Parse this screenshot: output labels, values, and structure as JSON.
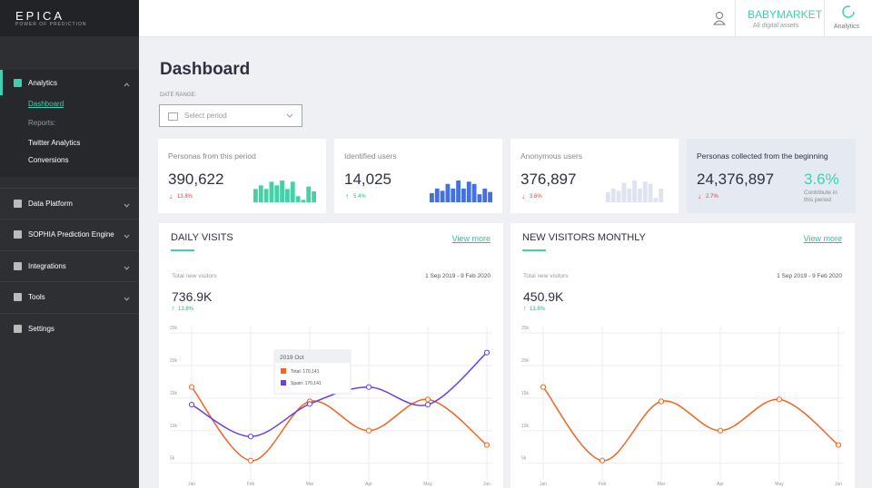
{
  "brand": {
    "logo": "EPICA",
    "tagline": "POWER OF PREDICTION"
  },
  "topbar": {
    "account": "BABYMARKET",
    "assets": "All digital assets",
    "app": "Analytics"
  },
  "sidebar": {
    "sections": [
      {
        "label": "Analytics",
        "children": [
          "Dashboard",
          "Reports:",
          "Twitter Analytics",
          "Conversions"
        ]
      },
      {
        "label": "Data Platform"
      },
      {
        "label": "SOPHIA Prediction Engine"
      },
      {
        "label": "Integrations"
      },
      {
        "label": "Tools"
      },
      {
        "label": "Settings"
      }
    ]
  },
  "page": {
    "title": "Dashboard",
    "date_range_label": "DATE RANGE:",
    "date_placeholder": "Select period"
  },
  "kpis": [
    {
      "title": "Personas from this period",
      "value": "390,622",
      "change": "13.8%",
      "trend": "down",
      "color": "#43d1a5",
      "bars": [
        11,
        14,
        11,
        17,
        14,
        18,
        11,
        17,
        5,
        2,
        13,
        9
      ]
    },
    {
      "title": "Identified users",
      "value": "14,025",
      "change": "5.4%",
      "trend": "up",
      "color": "#4570e0",
      "bars": [
        8,
        12,
        10,
        16,
        12,
        19,
        12,
        18,
        16,
        7,
        12,
        9
      ]
    },
    {
      "title": "Anonymous users",
      "value": "376,897",
      "change": "3.6%",
      "trend": "down",
      "color": "#dfe3ef",
      "bars": [
        9,
        12,
        10,
        17,
        12,
        19,
        12,
        18,
        16,
        4,
        12
      ]
    },
    {
      "title": "Personas collected from the beginning",
      "value": "24,376,897",
      "change": "2.7%",
      "trend": "down",
      "percent": "3.6%",
      "note": "Contribute in this period"
    }
  ],
  "charts": [
    {
      "title": "DAILY VISITS",
      "link": "View more",
      "subtitle": "Total new visitors",
      "date_range": "1 Sep 2019 - 9 Feb 2020",
      "total": "736.9K",
      "change": "13.8%",
      "tooltip": {
        "title": "2019 Oct",
        "items": [
          "Total: 170,141",
          "Spain: 170,141"
        ]
      },
      "chart_data": {
        "type": "line",
        "categories": [
          "Jan",
          "Feb",
          "Mar",
          "Apr",
          "May",
          "Jun"
        ],
        "series": [
          {
            "color": "#f26522",
            "values": [
              16700,
              5400,
              14500,
              10000,
              14800,
              7800
            ]
          },
          {
            "color": "#6a3de8",
            "values": [
              14000,
              9100,
              14100,
              16700,
              14000,
              22000
            ]
          }
        ],
        "ylim": [
          3000,
          26000
        ],
        "yticks": [
          {
            "value": 5000,
            "label": "5k"
          },
          {
            "value": 10000,
            "label": "10k"
          },
          {
            "value": 15000,
            "label": "15k"
          },
          {
            "value": 20000,
            "label": "20k"
          },
          {
            "value": 25000,
            "label": "25k"
          }
        ],
        "grid": true
      }
    },
    {
      "title": "NEW VISITORS MONTHLY",
      "link": "View more",
      "subtitle": "Total new visitors",
      "date_range": "1 Sep 2019 - 9 Feb 2020",
      "total": "450.9K",
      "change": "13.8%",
      "chart_data": {
        "type": "line",
        "categories": [
          "Jan",
          "Feb",
          "Mar",
          "Apr",
          "May",
          "Jun"
        ],
        "series": [
          {
            "color": "#f26522",
            "values": [
              16700,
              5400,
              14500,
              10000,
              14800,
              7800
            ]
          }
        ],
        "ylim": [
          3000,
          26000
        ],
        "yticks": [
          {
            "value": 5000,
            "label": "5k"
          },
          {
            "value": 10000,
            "label": "10k"
          },
          {
            "value": 15000,
            "label": "15k"
          },
          {
            "value": 20000,
            "label": "20k"
          },
          {
            "value": 25000,
            "label": "25k"
          }
        ],
        "grid": true
      }
    }
  ]
}
